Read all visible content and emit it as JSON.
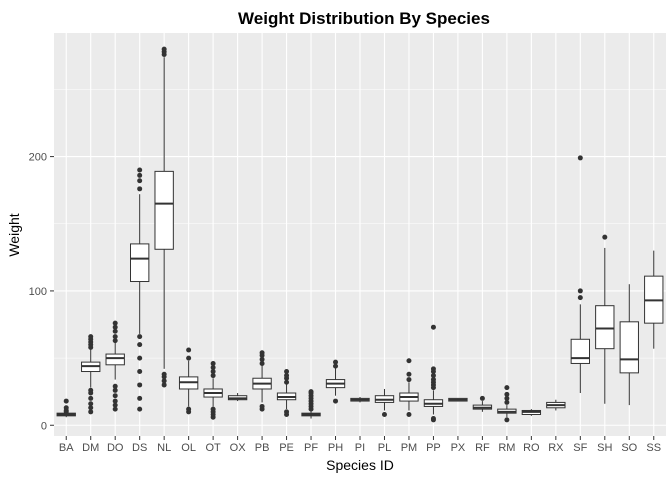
{
  "chart_data": {
    "type": "boxplot",
    "title": "Weight Distribution By Species",
    "xlabel": "Species ID",
    "ylabel": "Weight",
    "ylim": [
      -8,
      292
    ],
    "yticks": [
      0,
      100,
      200
    ],
    "grid": true,
    "legend": "none",
    "colors": {
      "panel": "#ebebeb",
      "grid_major": "#ffffff",
      "box_fill": "#ffffff",
      "box_stroke": "#333333",
      "outlier": "#333333",
      "text": "#4d4d4d"
    },
    "categories": [
      "BA",
      "DM",
      "DO",
      "DS",
      "NL",
      "OL",
      "OT",
      "OX",
      "PB",
      "PE",
      "PF",
      "PH",
      "PI",
      "PL",
      "PM",
      "PP",
      "PX",
      "RF",
      "RM",
      "RO",
      "RX",
      "SF",
      "SH",
      "SO",
      "SS"
    ],
    "boxes": [
      {
        "q1": 7,
        "median": 8,
        "q3": 9,
        "low": 6,
        "high": 9,
        "outliers": [
          10,
          11,
          13,
          18
        ]
      },
      {
        "q1": 40,
        "median": 44,
        "q3": 47,
        "low": 28,
        "high": 57,
        "outliers": [
          10,
          13,
          16,
          20,
          24,
          26,
          58,
          60,
          62,
          64,
          66
        ]
      },
      {
        "q1": 45,
        "median": 50,
        "q3": 53,
        "low": 34,
        "high": 62,
        "outliers": [
          12,
          15,
          18,
          22,
          26,
          29,
          63,
          66,
          70,
          73,
          76
        ]
      },
      {
        "q1": 107,
        "median": 124,
        "q3": 135,
        "low": 68,
        "high": 172,
        "outliers": [
          12,
          20,
          30,
          40,
          50,
          60,
          66,
          176,
          182,
          186,
          190
        ]
      },
      {
        "q1": 131,
        "median": 165,
        "q3": 189,
        "low": 42,
        "high": 274,
        "outliers": [
          30,
          33,
          36,
          38,
          276,
          278,
          280
        ]
      },
      {
        "q1": 27,
        "median": 32,
        "q3": 36,
        "low": 14,
        "high": 48,
        "outliers": [
          10,
          12,
          50,
          56
        ]
      },
      {
        "q1": 21,
        "median": 24,
        "q3": 27,
        "low": 14,
        "high": 35,
        "outliers": [
          6,
          8,
          10,
          12,
          37,
          40,
          43,
          46
        ]
      },
      {
        "q1": 19,
        "median": 20,
        "q3": 22,
        "low": 18,
        "high": 24,
        "outliers": []
      },
      {
        "q1": 27,
        "median": 31,
        "q3": 35,
        "low": 17,
        "high": 45,
        "outliers": [
          12,
          14,
          46,
          49,
          52,
          54
        ]
      },
      {
        "q1": 19,
        "median": 21,
        "q3": 24,
        "low": 12,
        "high": 31,
        "outliers": [
          8,
          10,
          32,
          35,
          37,
          40
        ]
      },
      {
        "q1": 7,
        "median": 8,
        "q3": 9,
        "low": 5,
        "high": 11,
        "outliers": [
          12,
          14,
          16,
          18,
          20,
          22,
          24,
          25
        ]
      },
      {
        "q1": 28,
        "median": 31,
        "q3": 34,
        "low": 22,
        "high": 43,
        "outliers": [
          18,
          44,
          47
        ]
      },
      {
        "q1": 18,
        "median": 19,
        "q3": 20,
        "low": 17,
        "high": 21,
        "outliers": []
      },
      {
        "q1": 17,
        "median": 19,
        "q3": 22,
        "low": 11,
        "high": 27,
        "outliers": [
          8
        ]
      },
      {
        "q1": 18,
        "median": 21,
        "q3": 24,
        "low": 11,
        "high": 32,
        "outliers": [
          8,
          34,
          38,
          48
        ]
      },
      {
        "q1": 14,
        "median": 16,
        "q3": 19,
        "low": 8,
        "high": 26,
        "outliers": [
          4,
          5,
          28,
          30,
          32,
          34,
          37,
          40,
          42,
          73
        ]
      },
      {
        "q1": 18,
        "median": 19,
        "q3": 20,
        "low": 18,
        "high": 20,
        "outliers": []
      },
      {
        "q1": 12,
        "median": 13,
        "q3": 15,
        "low": 10,
        "high": 18,
        "outliers": [
          20
        ]
      },
      {
        "q1": 9,
        "median": 10,
        "q3": 12,
        "low": 6,
        "high": 15,
        "outliers": [
          4,
          17,
          20,
          23,
          28
        ]
      },
      {
        "q1": 8,
        "median": 10,
        "q3": 11,
        "low": 7,
        "high": 12,
        "outliers": []
      },
      {
        "q1": 13,
        "median": 15,
        "q3": 17,
        "low": 11,
        "high": 19,
        "outliers": []
      },
      {
        "q1": 46,
        "median": 50,
        "q3": 64,
        "low": 24,
        "high": 90,
        "outliers": [
          95,
          100,
          199
        ]
      },
      {
        "q1": 57,
        "median": 72,
        "q3": 89,
        "low": 16,
        "high": 132,
        "outliers": [
          140
        ]
      },
      {
        "q1": 39,
        "median": 49,
        "q3": 77,
        "low": 15,
        "high": 105,
        "outliers": []
      },
      {
        "q1": 76,
        "median": 93,
        "q3": 111,
        "low": 57,
        "high": 130,
        "outliers": []
      }
    ]
  }
}
